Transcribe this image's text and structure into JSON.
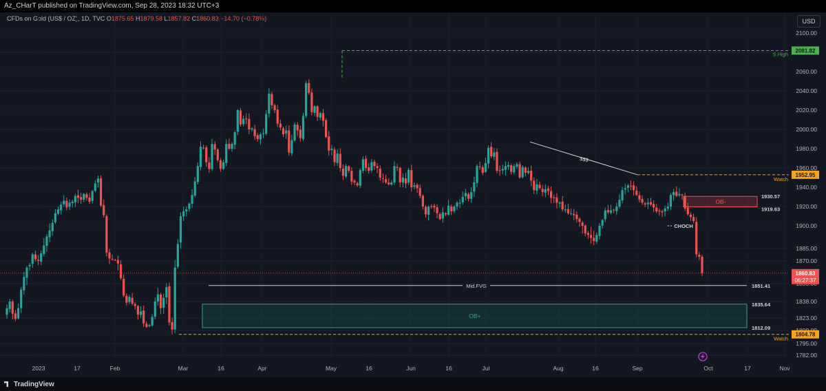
{
  "header": {
    "publisher": "Az_CHarT published on TradingView.com, Sep 28, 2023 18:32 UTC+3",
    "symbol": "CFDs on Gold (US$ / OZ), 1D, TVC",
    "o_label": "O",
    "o_value": "1875.65",
    "h_label": "H",
    "h_value": "1879.58",
    "l_label": "L",
    "l_value": "1857.82",
    "c_label": "C",
    "c_value": "1860.83",
    "change": "−14.70 (−0.78%)"
  },
  "currency_button": "USD",
  "footer": {
    "logo_text": "TradingView"
  },
  "colors": {
    "up": "#26a69a",
    "down": "#ef5350",
    "watch": "#f7a21b",
    "high": "#4caf50",
    "background": "#131722"
  },
  "chart_data": {
    "type": "candlestick",
    "title": "CFDs on Gold (US$ / OZ), 1D, TVC",
    "ylim": [
      1782,
      2100
    ],
    "y_ticks": [
      "2100.00",
      "2080.00",
      "2060.00",
      "2040.00",
      "2020.00",
      "2000.00",
      "1980.00",
      "1960.00",
      "1940.00",
      "1920.00",
      "1900.00",
      "1885.00",
      "1870.00",
      "1853.00",
      "1838.00",
      "1823.00",
      "1809.00",
      "1795.00",
      "1782.00"
    ],
    "x_ticks": [
      "2023",
      "17",
      "Feb",
      "Mar",
      "16",
      "Apr",
      "May",
      "16",
      "Jun",
      "16",
      "Jul",
      "Aug",
      "16",
      "Sep",
      "Oct",
      "17",
      "Nov"
    ],
    "last_price": "1860.83",
    "countdown": "06:27:37",
    "levels": [
      {
        "label": "S.High",
        "price": "2081.82"
      },
      {
        "label": "Watch",
        "price": "1952.95"
      },
      {
        "label": "Watch",
        "price": "1804.78"
      },
      {
        "label": "Mid.FVG",
        "price": "1851.41"
      }
    ],
    "zones": [
      {
        "label": "OB-",
        "top": "1930.57",
        "bottom": "1919.63"
      },
      {
        "label": "OB+",
        "top": "1835.64",
        "bottom": "1812.09"
      }
    ],
    "annotations": [
      "$$$",
      "CHOCH"
    ],
    "closes": [
      1832,
      1838,
      1827,
      1822,
      1832,
      1848,
      1858,
      1865,
      1867,
      1878,
      1872,
      1870,
      1879,
      1887,
      1893,
      1897,
      1903,
      1913,
      1917,
      1922,
      1926,
      1919,
      1924,
      1925,
      1931,
      1929,
      1927,
      1933,
      1929,
      1925,
      1936,
      1944,
      1949,
      1921,
      1911,
      1880,
      1873,
      1872,
      1871,
      1868,
      1857,
      1843,
      1837,
      1842,
      1836,
      1834,
      1826,
      1829,
      1817,
      1813,
      1815,
      1824,
      1838,
      1844,
      1832,
      1841,
      1850,
      1818,
      1810,
      1865,
      1888,
      1910,
      1915,
      1917,
      1923,
      1932,
      1946,
      1962,
      1982,
      1981,
      1966,
      1959,
      1985,
      1979,
      1968,
      1959,
      1966,
      1985,
      1980,
      1985,
      1997,
      2020,
      2005,
      2011,
      2011,
      2000,
      2001,
      1993,
      1990,
      1995,
      1996,
      2016,
      2037,
      2025,
      2020,
      2006,
      2002,
      1995,
      1999,
      1976,
      1989,
      2005,
      1999,
      1991,
      2014,
      2048,
      2038,
      2018,
      2024,
      2013,
      2017,
      2009,
      1992,
      1978,
      1980,
      1966,
      1975,
      1960,
      1952,
      1962,
      1957,
      1946,
      1945,
      1942,
      1958,
      1969,
      1960,
      1957,
      1966,
      1962,
      1960,
      1950,
      1949,
      1945,
      1943,
      1945,
      1962,
      1960,
      1945,
      1950,
      1944,
      1958,
      1940,
      1942,
      1939,
      1931,
      1920,
      1912,
      1920,
      1920,
      1919,
      1913,
      1907,
      1914,
      1912,
      1921,
      1915,
      1920,
      1924,
      1924,
      1930,
      1934,
      1928,
      1935,
      1945,
      1962,
      1961,
      1955,
      1965,
      1981,
      1972,
      1976,
      1957,
      1957,
      1959,
      1962,
      1963,
      1956,
      1962,
      1964,
      1950,
      1961,
      1955,
      1957,
      1947,
      1937,
      1943,
      1939,
      1935,
      1938,
      1936,
      1929,
      1929,
      1924,
      1924,
      1917,
      1917,
      1913,
      1913,
      1911,
      1907,
      1904,
      1900,
      1895,
      1894,
      1892,
      1890,
      1894,
      1900,
      1906,
      1916,
      1914,
      1916,
      1916,
      1920,
      1927,
      1937,
      1939,
      1942,
      1941,
      1937,
      1932,
      1927,
      1924,
      1922,
      1924,
      1922,
      1919,
      1915,
      1915,
      1914,
      1918,
      1920,
      1932,
      1935,
      1931,
      1933,
      1932,
      1918,
      1912,
      1909,
      1905,
      1878,
      1875,
      1860.83
    ]
  }
}
